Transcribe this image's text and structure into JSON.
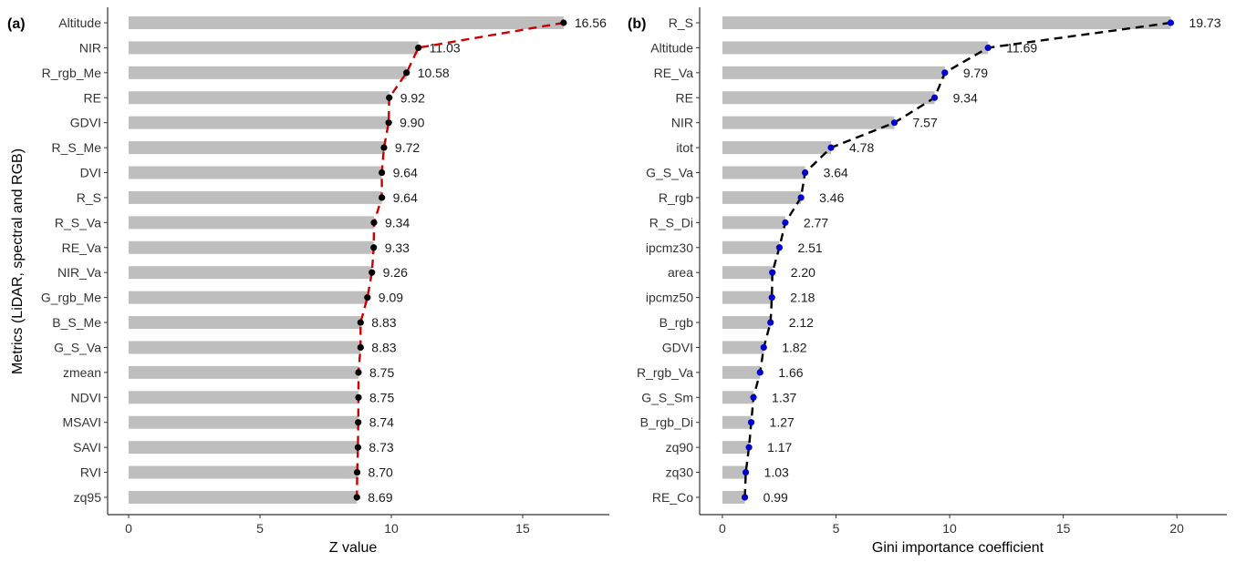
{
  "chart_data": [
    {
      "type": "bar",
      "panel_label": "(a)",
      "orientation": "horizontal",
      "categories": [
        "Altitude",
        "NIR",
        "R_rgb_Me",
        "RE",
        "GDVI",
        "R_S_Me",
        "DVI",
        "R_S",
        "R_S_Va",
        "RE_Va",
        "NIR_Va",
        "G_rgb_Me",
        "B_S_Me",
        "G_S_Va",
        "zmean",
        "NDVI",
        "MSAVI",
        "SAVI",
        "RVI",
        "zq95"
      ],
      "values": [
        16.56,
        11.03,
        10.58,
        9.92,
        9.9,
        9.72,
        9.64,
        9.64,
        9.34,
        9.33,
        9.26,
        9.09,
        8.83,
        8.83,
        8.75,
        8.75,
        8.74,
        8.73,
        8.7,
        8.69
      ],
      "value_labels": [
        "16.56",
        "11.03",
        "10.58",
        "9.92",
        "9.90",
        "9.72",
        "9.64",
        "9.64",
        "9.34",
        "9.33",
        "9.26",
        "9.09",
        "8.83",
        "8.83",
        "8.75",
        "8.75",
        "8.74",
        "8.73",
        "8.70",
        "8.69"
      ],
      "xlabel": "Z value",
      "ylabel": "Metrics (LiDAR, spectral and RGB)",
      "xlim": [
        -0.8,
        18.3
      ],
      "xticks": [
        0,
        5,
        10,
        15
      ],
      "xtick_labels": [
        "0",
        "5",
        "10",
        "15"
      ],
      "grid": false,
      "overlay": {
        "type": "dashed-line-with-points",
        "line_color": "#cc0000",
        "point_color": "#000000"
      },
      "bar_color": "#bebebe"
    },
    {
      "type": "bar",
      "panel_label": "(b)",
      "orientation": "horizontal",
      "categories": [
        "R_S",
        "Altitude",
        "RE_Va",
        "RE",
        "NIR",
        "itot",
        "G_S_Va",
        "R_rgb",
        "R_S_Di",
        "ipcmz30",
        "area",
        "ipcmz50",
        "B_rgb",
        "GDVI",
        "R_rgb_Va",
        "G_S_Sm",
        "B_rgb_Di",
        "zq90",
        "zq30",
        "RE_Co"
      ],
      "values": [
        19.73,
        11.69,
        9.79,
        9.34,
        7.57,
        4.78,
        3.64,
        3.46,
        2.77,
        2.51,
        2.2,
        2.18,
        2.12,
        1.82,
        1.66,
        1.37,
        1.27,
        1.17,
        1.03,
        0.99
      ],
      "value_labels": [
        "19.73",
        "11.69",
        "9.79",
        "9.34",
        "7.57",
        "4.78",
        "3.64",
        "3.46",
        "2.77",
        "2.51",
        "2.20",
        "2.18",
        "2.12",
        "1.82",
        "1.66",
        "1.37",
        "1.27",
        "1.17",
        "1.03",
        "0.99"
      ],
      "xlabel": "Gini importance coefficient",
      "ylabel": "",
      "xlim": [
        -1.0,
        22.2
      ],
      "xticks": [
        0,
        5,
        10,
        15,
        20
      ],
      "xtick_labels": [
        "0",
        "5",
        "10",
        "15",
        "20"
      ],
      "grid": false,
      "overlay": {
        "type": "dashed-line-with-points",
        "line_color": "#000000",
        "point_color": "#0000cc"
      },
      "bar_color": "#bebebe"
    }
  ]
}
